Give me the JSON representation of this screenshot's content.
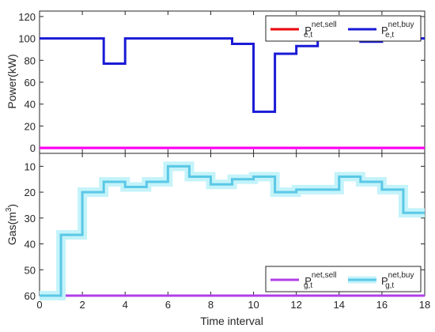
{
  "chart_data": [
    {
      "type": "line",
      "xlabel": "",
      "ylabel": "Power(kW)",
      "xlim": [
        0,
        18
      ],
      "ylim": [
        -5,
        125
      ],
      "yticks": [
        0,
        20,
        40,
        60,
        80,
        100,
        120
      ],
      "xticks": [],
      "step": true,
      "legend_position": "top-right",
      "series": [
        {
          "name": "P e,t net,sell",
          "legend_base": "P",
          "legend_sup": "net,sell",
          "legend_sub": "e,t",
          "color": "#e8000b",
          "x": [
            0,
            18
          ],
          "y": [
            0,
            0
          ]
        },
        {
          "name": "P e,t net,buy",
          "legend_base": "P",
          "legend_sup": "net,buy",
          "legend_sub": "e,t",
          "color": "#1a1ad6",
          "x": [
            0,
            3,
            4,
            9,
            10,
            11,
            12,
            13,
            14,
            15,
            16,
            17,
            18
          ],
          "y": [
            100,
            77,
            100,
            95,
            33,
            86,
            93,
            100,
            100,
            97,
            100,
            100,
            100
          ]
        },
        {
          "name": "zero-line",
          "color": "#ff00ff",
          "x": [
            0,
            18
          ],
          "y": [
            0,
            0
          ],
          "hide_legend": true
        }
      ]
    },
    {
      "type": "line",
      "xlabel": "Time interval",
      "ylabel_base": "Gas(m",
      "ylabel_sup": "3",
      "ylabel_end": ")",
      "xlim": [
        0,
        18
      ],
      "ylim": [
        60,
        5
      ],
      "yticks": [
        10,
        20,
        30,
        40,
        50,
        60
      ],
      "xticks": [
        0,
        2,
        4,
        6,
        8,
        10,
        12,
        14,
        16,
        18
      ],
      "step": true,
      "legend_position": "bottom-right",
      "series": [
        {
          "name": "P g,t net,sell",
          "legend_base": "P",
          "legend_sup": "net,sell",
          "legend_sub": "g,t",
          "color": "#b03fe8",
          "x": [
            0,
            18
          ],
          "y": [
            60,
            60
          ]
        },
        {
          "name": "P g,t net,buy",
          "legend_base": "P",
          "legend_sup": "net,buy",
          "legend_sub": "g,t",
          "color": "#5bc8e6",
          "x": [
            0,
            1,
            2,
            3,
            4,
            5,
            6,
            7,
            8,
            9,
            10,
            11,
            12,
            13,
            14,
            15,
            16,
            17,
            18
          ],
          "y": [
            60,
            36.5,
            20,
            16,
            18,
            16,
            10,
            14,
            17,
            15,
            14,
            20,
            19,
            19,
            14,
            16,
            19,
            28,
            28
          ]
        }
      ]
    }
  ]
}
